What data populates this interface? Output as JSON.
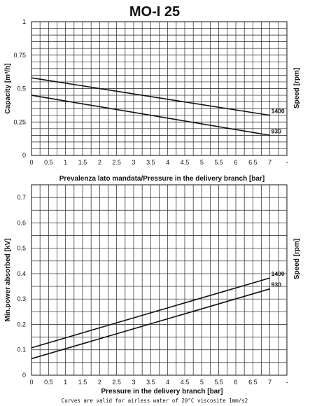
{
  "title": "MO-I 25",
  "footnote": "Curves are valid for airless water of 20°C viscosite 1mm/s2",
  "chart_data": [
    {
      "type": "line",
      "name": "capacity",
      "xlabel": "Prevalenza lato mandata/Pressure in the delivery branch [bar]",
      "ylabel": "Capacity [m³/h]",
      "ylabel_right": "Speed [rpm]",
      "xlim": [
        0,
        7.5
      ],
      "ylim": [
        0,
        1
      ],
      "x_ticks": [
        "0",
        "0.5",
        "1",
        "1.5",
        "2",
        "2.5",
        "3",
        "3.5",
        "4",
        "4.5",
        "5",
        "5.5",
        "6",
        "6.5",
        "7",
        "-"
      ],
      "y_ticks": [
        "0",
        "0.25",
        "0.5",
        "0.75",
        "1"
      ],
      "grid": true,
      "series": [
        {
          "name": "1400",
          "x": [
            0,
            7
          ],
          "y": [
            0.58,
            0.3
          ]
        },
        {
          "name": "930",
          "x": [
            0,
            7
          ],
          "y": [
            0.45,
            0.15
          ]
        }
      ]
    },
    {
      "type": "line",
      "name": "power",
      "xlabel": "Pressure in the delivery branch [bar]",
      "ylabel": "Min.power absorbed [kV]",
      "ylabel_right": "Speed [rpm]",
      "xlim": [
        0,
        7.5
      ],
      "ylim": [
        0,
        0.75
      ],
      "x_ticks": [
        "0",
        "0.5",
        "1",
        "1.5",
        "2",
        "2.5",
        "3",
        "3.5",
        "4",
        "4.5",
        "5",
        "5.5",
        "6",
        "6.5",
        "7",
        "-"
      ],
      "y_ticks": [
        "0",
        "0.1",
        "0.2",
        "0.3",
        "0.4",
        "0.5",
        "0.6",
        "0.7"
      ],
      "grid": true,
      "series": [
        {
          "name": "1400",
          "x": [
            0,
            7
          ],
          "y": [
            0.108,
            0.383
          ]
        },
        {
          "name": "930",
          "x": [
            0,
            7
          ],
          "y": [
            0.065,
            0.34
          ]
        }
      ]
    }
  ]
}
